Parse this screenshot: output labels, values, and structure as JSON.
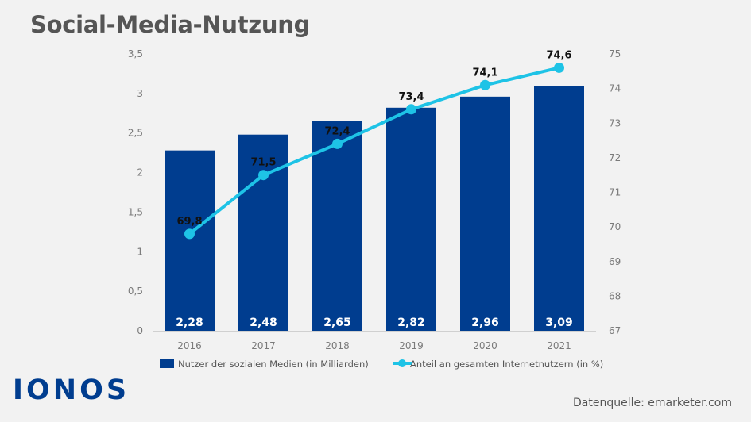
{
  "title": "Social-Media-Nutzung",
  "logo": "IONOS",
  "source": "Datenquelle: emarketer.com",
  "colors": {
    "bar": "#003d8f",
    "line": "#1ec3e6",
    "text": "#555555"
  },
  "chart_data": {
    "type": "bar",
    "categories": [
      "2016",
      "2017",
      "2018",
      "2019",
      "2020",
      "2021"
    ],
    "series": [
      {
        "name": "Nutzer der sozialen Medien (in Milliarden)",
        "type": "bar",
        "axis": "left",
        "values": [
          2.28,
          2.48,
          2.65,
          2.82,
          2.96,
          3.09
        ],
        "labels": [
          "2,28",
          "2,48",
          "2,65",
          "2,82",
          "2,96",
          "3,09"
        ]
      },
      {
        "name": "Anteil an gesamten Internetnutzern (in %)",
        "type": "line",
        "axis": "right",
        "values": [
          69.8,
          71.5,
          72.4,
          73.4,
          74.1,
          74.6
        ],
        "labels": [
          "69,8",
          "71,5",
          "72,4",
          "73,4",
          "74,1",
          "74,6"
        ]
      }
    ],
    "y_left": {
      "lim": [
        0,
        3.5
      ],
      "ticks": [
        0,
        0.5,
        1,
        1.5,
        2,
        2.5,
        3,
        3.5
      ],
      "tick_labels": [
        "0",
        "0,5",
        "1",
        "1,5",
        "2",
        "2,5",
        "3",
        "3,5"
      ]
    },
    "y_right": {
      "lim": [
        67,
        75
      ],
      "ticks": [
        67,
        68,
        69,
        70,
        71,
        72,
        73,
        74,
        75
      ],
      "tick_labels": [
        "67",
        "68",
        "69",
        "70",
        "71",
        "72",
        "73",
        "74",
        "75"
      ]
    },
    "legend_position": "bottom",
    "grid": false
  }
}
